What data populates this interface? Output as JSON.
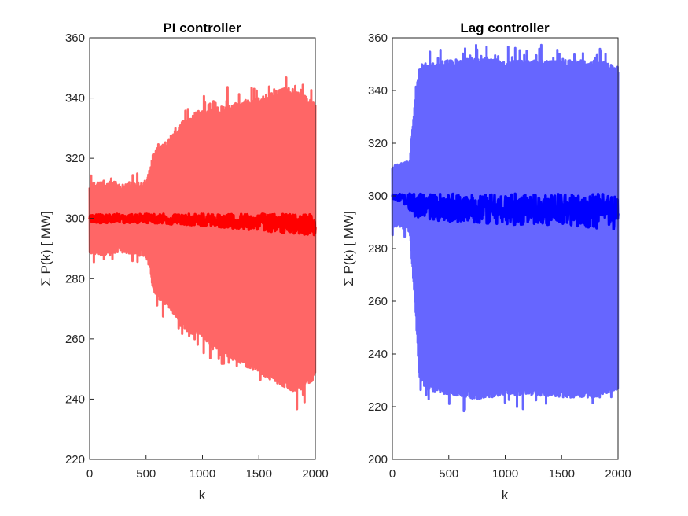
{
  "chart_data": [
    {
      "type": "line",
      "title": "PI controller",
      "xlabel": "k",
      "ylabel": "Σ P(k) [ MW]",
      "xlim": [
        0,
        2000
      ],
      "ylim": [
        220,
        360
      ],
      "xticks": [
        "0",
        "500",
        "1000",
        "1500",
        "2000"
      ],
      "yticks": [
        "220",
        "240",
        "260",
        "280",
        "300",
        "320",
        "340",
        "360"
      ],
      "grid": false,
      "colors": {
        "envelope": "#ff6666",
        "center": "#ff0000"
      },
      "series": [
        {
          "role": "envelope-upper",
          "x": [
            0,
            100,
            200,
            300,
            400,
            500,
            540,
            560,
            600,
            700,
            800,
            900,
            1000,
            1100,
            1200,
            1300,
            1400,
            1500,
            1600,
            1700,
            1800,
            1900,
            2000
          ],
          "values": [
            310,
            311,
            311,
            310,
            311,
            311,
            315,
            320,
            322,
            325,
            330,
            333,
            335,
            335,
            336,
            337,
            338,
            339,
            340,
            342,
            341,
            340,
            337
          ]
        },
        {
          "role": "envelope-lower",
          "x": [
            0,
            100,
            200,
            300,
            400,
            500,
            540,
            560,
            600,
            700,
            800,
            900,
            1000,
            1100,
            1200,
            1300,
            1400,
            1500,
            1600,
            1700,
            1800,
            1900,
            2000
          ],
          "values": [
            290,
            289,
            289,
            290,
            289,
            289,
            284,
            278,
            275,
            272,
            266,
            263,
            262,
            258,
            256,
            254,
            252,
            250,
            248,
            246,
            244,
            244,
            249
          ]
        },
        {
          "role": "center-upper",
          "x": [
            0,
            500,
            1000,
            1500,
            2000
          ],
          "values": [
            301.5,
            301.5,
            301.5,
            301.5,
            301.5
          ]
        },
        {
          "role": "center-lower",
          "x": [
            0,
            500,
            1000,
            1500,
            2000
          ],
          "values": [
            298.5,
            298.5,
            297.5,
            296,
            294
          ]
        }
      ]
    },
    {
      "type": "line",
      "title": "Lag controller",
      "xlabel": "k",
      "ylabel": "Σ P(k) [ MW]",
      "xlim": [
        0,
        2000
      ],
      "ylim": [
        200,
        360
      ],
      "xticks": [
        "0",
        "500",
        "1000",
        "1500",
        "2000"
      ],
      "yticks": [
        "200",
        "220",
        "240",
        "260",
        "280",
        "300",
        "320",
        "340",
        "360"
      ],
      "grid": false,
      "colors": {
        "envelope": "#6666ff",
        "center": "#0000ff"
      },
      "series": [
        {
          "role": "envelope-upper",
          "x": [
            0,
            100,
            150,
            200,
            240,
            300,
            500,
            800,
            1000,
            1200,
            1500,
            1800,
            2000
          ],
          "values": [
            310,
            311,
            312,
            335,
            347,
            349,
            350,
            351,
            350,
            350,
            350,
            350,
            348
          ]
        },
        {
          "role": "envelope-lower",
          "x": [
            0,
            100,
            150,
            200,
            240,
            300,
            500,
            800,
            1000,
            1200,
            1500,
            1800,
            2000
          ],
          "values": [
            290,
            289,
            288,
            262,
            232,
            228,
            226,
            224,
            226,
            226,
            225,
            225,
            228
          ]
        },
        {
          "role": "center-upper",
          "x": [
            0,
            500,
            1000,
            1500,
            2000
          ],
          "values": [
            300.8,
            300.8,
            300.8,
            300.8,
            300.8
          ]
        },
        {
          "role": "center-lower",
          "x": [
            0,
            100,
            200,
            500,
            1000,
            1500,
            2000
          ],
          "values": [
            298.5,
            297,
            292,
            290,
            289,
            289,
            287
          ]
        }
      ]
    }
  ]
}
